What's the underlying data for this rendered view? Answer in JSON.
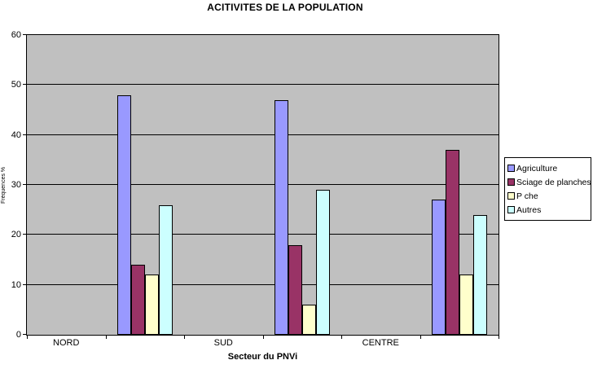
{
  "title": "ACITIVITES DE LA POPULATION",
  "chart_data": {
    "type": "bar",
    "categories": [
      "NORD",
      "SUD",
      "CENTRE"
    ],
    "series": [
      {
        "name": "Agriculture",
        "color": "#9999FF",
        "values": [
          48,
          47,
          27
        ]
      },
      {
        "name": "Sciage de planches",
        "color": "#993366",
        "values": [
          14,
          18,
          37
        ]
      },
      {
        "name": "P che",
        "color": "#FFFFCC",
        "values": [
          12,
          6,
          12
        ]
      },
      {
        "name": "Autres",
        "color": "#CCFFFF",
        "values": [
          26,
          29,
          24
        ]
      }
    ],
    "xlabel": "Secteur du PNVi",
    "ylabel": "Fréquences %",
    "ylim": [
      0,
      60
    ],
    "yticks": [
      0,
      10,
      20,
      30,
      40,
      50,
      60
    ],
    "plot_bg": "#C0C0C0",
    "grid": true,
    "legend_position": "right",
    "bar_border_color": "#000000"
  }
}
